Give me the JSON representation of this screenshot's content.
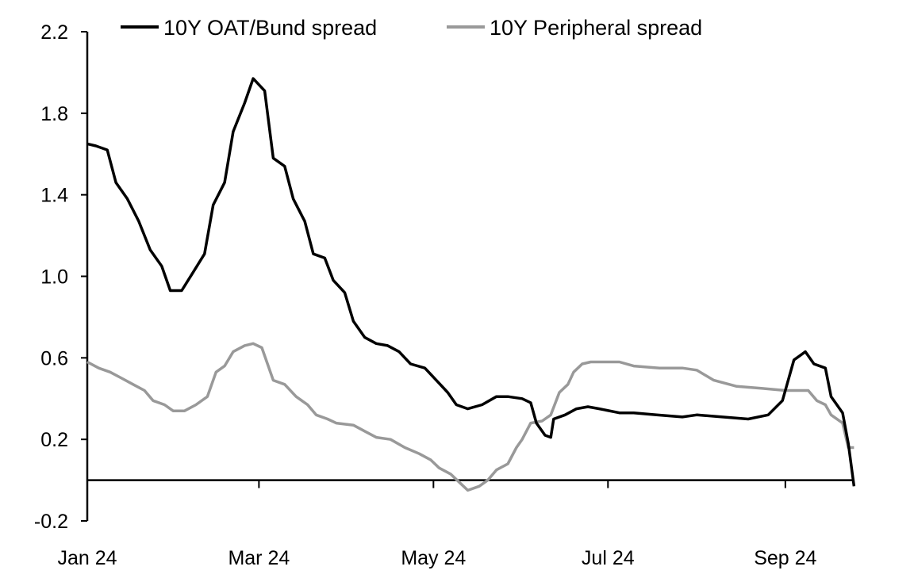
{
  "chart_data": {
    "type": "line",
    "title": "",
    "xlabel": "",
    "ylabel": "",
    "xlim": [
      "2024-01-01",
      "2024-09-26"
    ],
    "ylim": [
      -0.2,
      2.2
    ],
    "yticks": [
      -0.2,
      0.2,
      0.6,
      1.0,
      1.4,
      1.8,
      2.2
    ],
    "ytick_labels": [
      "-0.2",
      "0.2",
      "0.6",
      "1.0",
      "1.4",
      "1.8",
      "2.2"
    ],
    "xticks": [
      "2024-01-01",
      "2024-03-01",
      "2024-05-01",
      "2024-07-01",
      "2024-09-01"
    ],
    "xtick_labels": [
      "Jan 24",
      "Mar 24",
      "May 24",
      "Jul 24",
      "Sep 24"
    ],
    "grid": false,
    "zero_line": true,
    "legend_position": "top",
    "series": [
      {
        "name": "10Y OAT/Bund spread",
        "color": "#000000",
        "points": [
          [
            "2024-01-01",
            1.65
          ],
          [
            "2024-01-04",
            1.64
          ],
          [
            "2024-01-08",
            1.62
          ],
          [
            "2024-01-11",
            1.46
          ],
          [
            "2024-01-15",
            1.38
          ],
          [
            "2024-01-19",
            1.27
          ],
          [
            "2024-01-23",
            1.13
          ],
          [
            "2024-01-27",
            1.05
          ],
          [
            "2024-01-30",
            0.93
          ],
          [
            "2024-02-03",
            0.93
          ],
          [
            "2024-02-07",
            1.02
          ],
          [
            "2024-02-11",
            1.11
          ],
          [
            "2024-02-14",
            1.35
          ],
          [
            "2024-02-18",
            1.46
          ],
          [
            "2024-02-21",
            1.71
          ],
          [
            "2024-02-25",
            1.85
          ],
          [
            "2024-02-28",
            1.97
          ],
          [
            "2024-03-03",
            1.91
          ],
          [
            "2024-03-06",
            1.58
          ],
          [
            "2024-03-10",
            1.54
          ],
          [
            "2024-03-13",
            1.38
          ],
          [
            "2024-03-17",
            1.27
          ],
          [
            "2024-03-20",
            1.11
          ],
          [
            "2024-03-24",
            1.09
          ],
          [
            "2024-03-27",
            0.98
          ],
          [
            "2024-03-31",
            0.92
          ],
          [
            "2024-04-03",
            0.78
          ],
          [
            "2024-04-07",
            0.7
          ],
          [
            "2024-04-11",
            0.67
          ],
          [
            "2024-04-15",
            0.66
          ],
          [
            "2024-04-19",
            0.63
          ],
          [
            "2024-04-23",
            0.57
          ],
          [
            "2024-04-28",
            0.55
          ],
          [
            "2024-05-02",
            0.49
          ],
          [
            "2024-05-06",
            0.43
          ],
          [
            "2024-05-09",
            0.37
          ],
          [
            "2024-05-13",
            0.35
          ],
          [
            "2024-05-18",
            0.37
          ],
          [
            "2024-05-23",
            0.41
          ],
          [
            "2024-05-27",
            0.41
          ],
          [
            "2024-06-01",
            0.4
          ],
          [
            "2024-06-04",
            0.38
          ],
          [
            "2024-06-06",
            0.28
          ],
          [
            "2024-06-09",
            0.22
          ],
          [
            "2024-06-11",
            0.21
          ],
          [
            "2024-06-12",
            0.3
          ],
          [
            "2024-06-16",
            0.32
          ],
          [
            "2024-06-20",
            0.35
          ],
          [
            "2024-06-24",
            0.36
          ],
          [
            "2024-06-28",
            0.35
          ],
          [
            "2024-07-05",
            0.33
          ],
          [
            "2024-07-10",
            0.33
          ],
          [
            "2024-07-18",
            0.32
          ],
          [
            "2024-07-27",
            0.31
          ],
          [
            "2024-08-01",
            0.32
          ],
          [
            "2024-08-10",
            0.31
          ],
          [
            "2024-08-19",
            0.3
          ],
          [
            "2024-08-26",
            0.32
          ],
          [
            "2024-08-31",
            0.39
          ],
          [
            "2024-09-04",
            0.59
          ],
          [
            "2024-09-06",
            0.61
          ],
          [
            "2024-09-08",
            0.63
          ],
          [
            "2024-09-11",
            0.57
          ],
          [
            "2024-09-15",
            0.55
          ],
          [
            "2024-09-17",
            0.41
          ],
          [
            "2024-09-21",
            0.33
          ],
          [
            "2024-09-23",
            0.18
          ],
          [
            "2024-09-25",
            -0.03
          ]
        ]
      },
      {
        "name": "10Y Peripheral spread",
        "color": "#999999",
        "points": [
          [
            "2024-01-01",
            0.58
          ],
          [
            "2024-01-05",
            0.55
          ],
          [
            "2024-01-09",
            0.53
          ],
          [
            "2024-01-13",
            0.5
          ],
          [
            "2024-01-17",
            0.47
          ],
          [
            "2024-01-21",
            0.44
          ],
          [
            "2024-01-24",
            0.39
          ],
          [
            "2024-01-28",
            0.37
          ],
          [
            "2024-01-31",
            0.34
          ],
          [
            "2024-02-04",
            0.34
          ],
          [
            "2024-02-08",
            0.37
          ],
          [
            "2024-02-12",
            0.41
          ],
          [
            "2024-02-15",
            0.53
          ],
          [
            "2024-02-18",
            0.56
          ],
          [
            "2024-02-21",
            0.63
          ],
          [
            "2024-02-25",
            0.66
          ],
          [
            "2024-02-28",
            0.67
          ],
          [
            "2024-03-02",
            0.65
          ],
          [
            "2024-03-06",
            0.49
          ],
          [
            "2024-03-10",
            0.47
          ],
          [
            "2024-03-14",
            0.41
          ],
          [
            "2024-03-18",
            0.37
          ],
          [
            "2024-03-21",
            0.32
          ],
          [
            "2024-03-25",
            0.3
          ],
          [
            "2024-03-28",
            0.28
          ],
          [
            "2024-04-03",
            0.27
          ],
          [
            "2024-04-07",
            0.24
          ],
          [
            "2024-04-11",
            0.21
          ],
          [
            "2024-04-16",
            0.2
          ],
          [
            "2024-04-21",
            0.16
          ],
          [
            "2024-04-26",
            0.13
          ],
          [
            "2024-04-30",
            0.1
          ],
          [
            "2024-05-03",
            0.06
          ],
          [
            "2024-05-07",
            0.03
          ],
          [
            "2024-05-10",
            -0.01
          ],
          [
            "2024-05-13",
            -0.05
          ],
          [
            "2024-05-17",
            -0.03
          ],
          [
            "2024-05-20",
            0.0
          ],
          [
            "2024-05-23",
            0.05
          ],
          [
            "2024-05-27",
            0.08
          ],
          [
            "2024-05-30",
            0.16
          ],
          [
            "2024-06-01",
            0.2
          ],
          [
            "2024-06-04",
            0.28
          ],
          [
            "2024-06-08",
            0.29
          ],
          [
            "2024-06-11",
            0.32
          ],
          [
            "2024-06-14",
            0.43
          ],
          [
            "2024-06-17",
            0.47
          ],
          [
            "2024-06-19",
            0.53
          ],
          [
            "2024-06-22",
            0.57
          ],
          [
            "2024-06-25",
            0.58
          ],
          [
            "2024-07-01",
            0.58
          ],
          [
            "2024-07-05",
            0.58
          ],
          [
            "2024-07-10",
            0.56
          ],
          [
            "2024-07-19",
            0.55
          ],
          [
            "2024-07-27",
            0.55
          ],
          [
            "2024-08-01",
            0.54
          ],
          [
            "2024-08-07",
            0.49
          ],
          [
            "2024-08-15",
            0.46
          ],
          [
            "2024-08-24",
            0.45
          ],
          [
            "2024-09-01",
            0.44
          ],
          [
            "2024-09-07",
            0.44
          ],
          [
            "2024-09-09",
            0.44
          ],
          [
            "2024-09-12",
            0.39
          ],
          [
            "2024-09-15",
            0.37
          ],
          [
            "2024-09-17",
            0.32
          ],
          [
            "2024-09-21",
            0.28
          ],
          [
            "2024-09-23",
            0.16
          ],
          [
            "2024-09-25",
            0.16
          ]
        ]
      }
    ]
  }
}
